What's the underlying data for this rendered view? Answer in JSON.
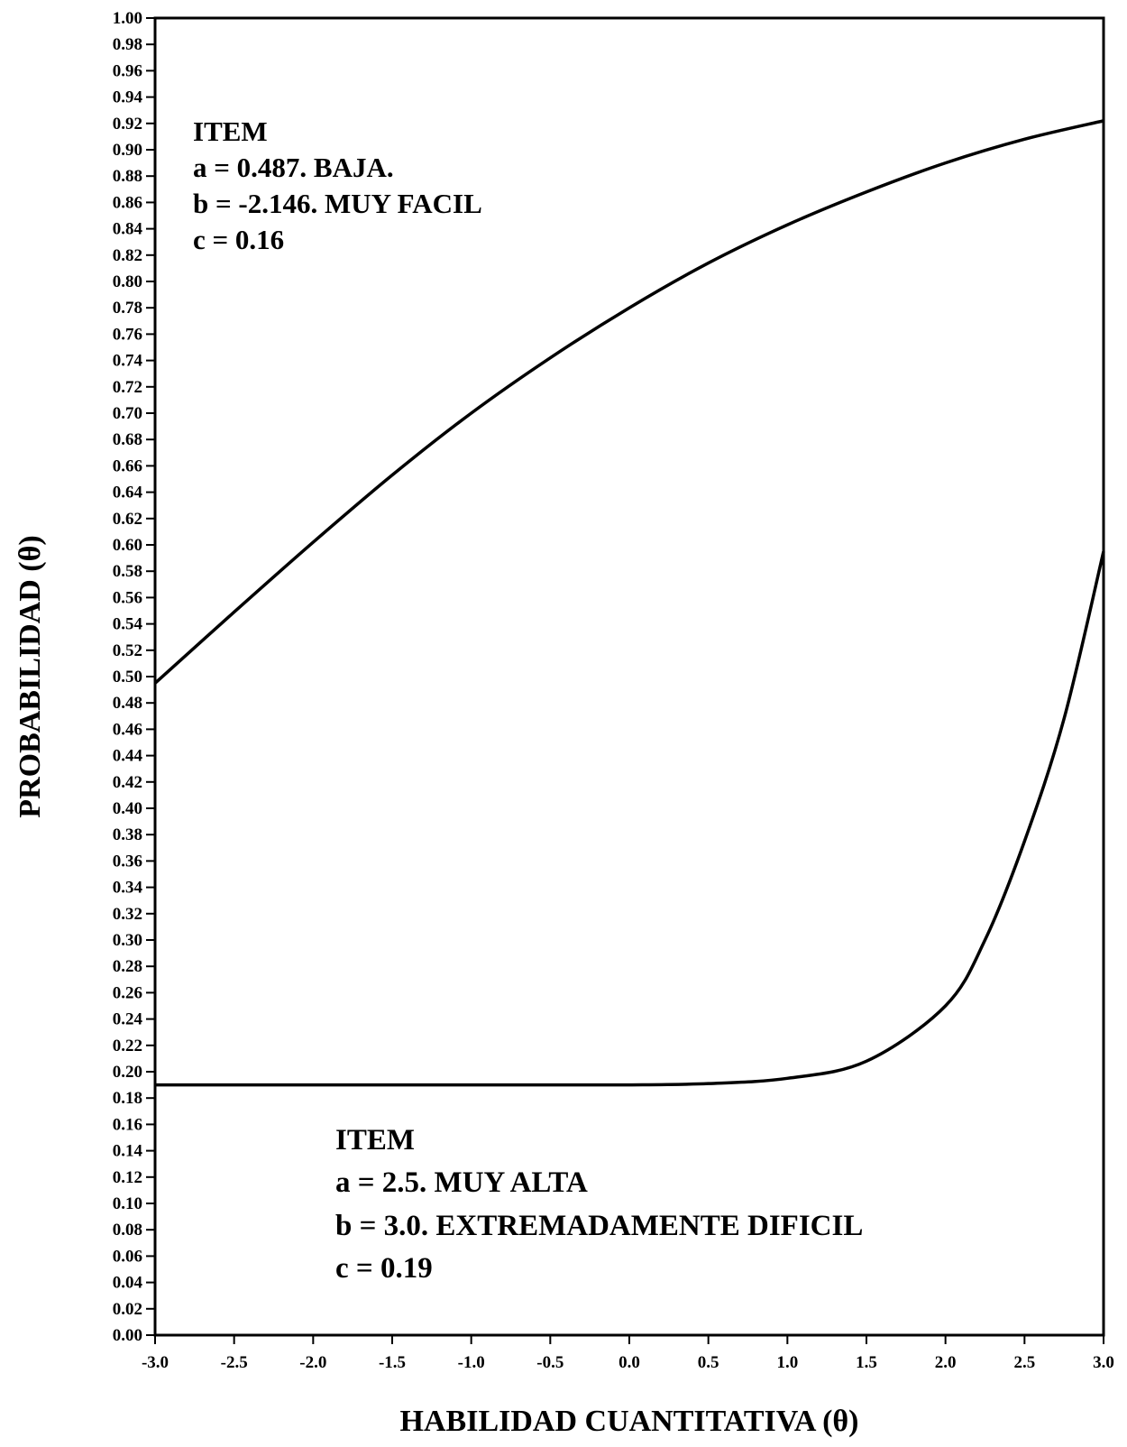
{
  "chart_data": {
    "type": "line",
    "title": "",
    "xlabel": "HABILIDAD CUANTITATIVA (θ)",
    "ylabel": "PROBABILIDAD (θ)",
    "xlim": [
      -3.0,
      3.0
    ],
    "ylim": [
      0.0,
      1.0
    ],
    "x_ticks": [
      "-3.0",
      "-2.5",
      "-2.0",
      "-1.5",
      "-1.0",
      "-0.5",
      "0.0",
      "0.5",
      "1.0",
      "1.5",
      "2.0",
      "2.5",
      "3.0"
    ],
    "y_ticks": [
      "0.00",
      "0.02",
      "0.04",
      "0.06",
      "0.08",
      "0.10",
      "0.12",
      "0.14",
      "0.16",
      "0.18",
      "0.20",
      "0.22",
      "0.24",
      "0.26",
      "0.28",
      "0.30",
      "0.32",
      "0.34",
      "0.36",
      "0.38",
      "0.40",
      "0.42",
      "0.44",
      "0.46",
      "0.48",
      "0.50",
      "0.52",
      "0.54",
      "0.56",
      "0.58",
      "0.60",
      "0.62",
      "0.64",
      "0.66",
      "0.68",
      "0.70",
      "0.72",
      "0.74",
      "0.76",
      "0.78",
      "0.80",
      "0.82",
      "0.84",
      "0.86",
      "0.88",
      "0.90",
      "0.92",
      "0.94",
      "0.96",
      "0.98",
      "1.00"
    ],
    "grid": false,
    "legend": "none",
    "series": [
      {
        "x": [
          -3.0,
          -2.5,
          -2.0,
          -1.5,
          -1.0,
          -0.5,
          0.0,
          0.5,
          1.0,
          1.5,
          2.0,
          2.5,
          3.0
        ],
        "values": [
          0.495,
          0.549,
          0.602,
          0.653,
          0.7,
          0.742,
          0.78,
          0.814,
          0.843,
          0.868,
          0.89,
          0.908,
          0.922
        ],
        "color": "#000000"
      },
      {
        "x": [
          -3.0,
          -2.5,
          -2.0,
          -1.5,
          -1.0,
          -0.5,
          0.0,
          0.5,
          1.0,
          1.5,
          2.0,
          2.25,
          2.5,
          2.75,
          3.0
        ],
        "values": [
          0.19,
          0.19,
          0.19,
          0.19,
          0.19,
          0.19,
          0.19,
          0.191,
          0.195,
          0.208,
          0.25,
          0.3,
          0.375,
          0.468,
          0.595
        ],
        "color": "#000000"
      }
    ],
    "annotations": [
      {
        "lines": [
          "ITEM",
          "a = 0.487. BAJA.",
          "b = -2.146. MUY FACIL",
          "c = 0.16"
        ]
      },
      {
        "lines": [
          "ITEM",
          "a = 2.5. MUY ALTA",
          "b = 3.0. EXTREMADAMENTE DIFICIL",
          "c = 0.19"
        ]
      }
    ]
  }
}
